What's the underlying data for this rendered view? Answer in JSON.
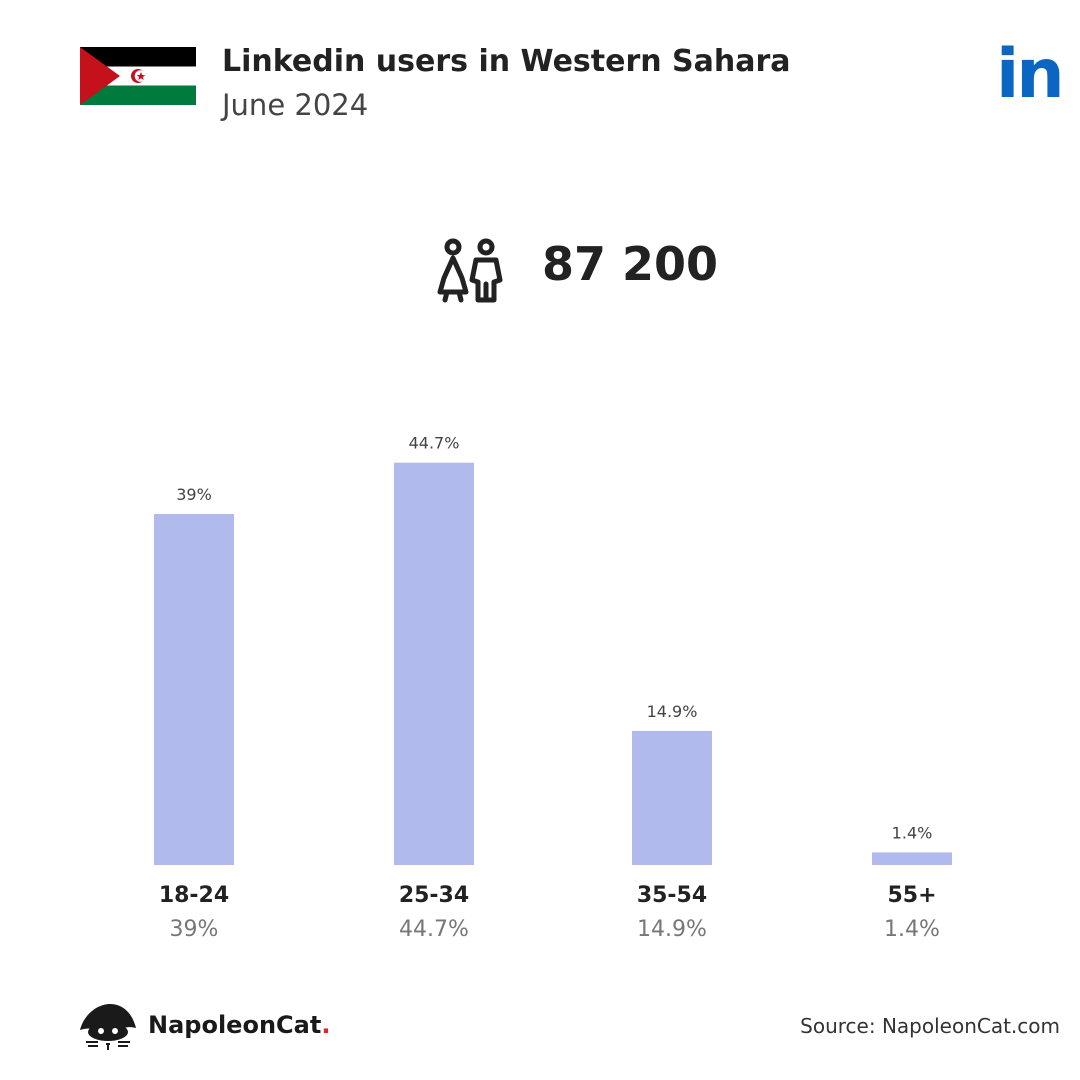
{
  "header": {
    "title": "Linkedin users in Western Sahara",
    "subtitle": "June 2024",
    "linkedin_logo": "in",
    "flag_icon": "western-sahara-flag-icon"
  },
  "summary": {
    "total_users": "87 200",
    "icon": "people-icon"
  },
  "colors": {
    "bar": "#b0baec",
    "linkedin_blue": "#0a66c2",
    "flag_black": "#000000",
    "flag_white": "#ffffff",
    "flag_green": "#007a3d",
    "flag_red": "#c4111b"
  },
  "chart_data": {
    "type": "bar",
    "categories": [
      "18-24",
      "25-34",
      "35-54",
      "55+"
    ],
    "values": [
      39,
      44.7,
      14.9,
      1.4
    ],
    "value_labels": [
      "39%",
      "44.7%",
      "14.9%",
      "1.4%"
    ],
    "ylim": [
      0,
      50
    ],
    "grid": false
  },
  "footer": {
    "brand_name": "NapoleonCat",
    "brand_dot": ".",
    "source": "Source: NapoleonCat.com"
  }
}
